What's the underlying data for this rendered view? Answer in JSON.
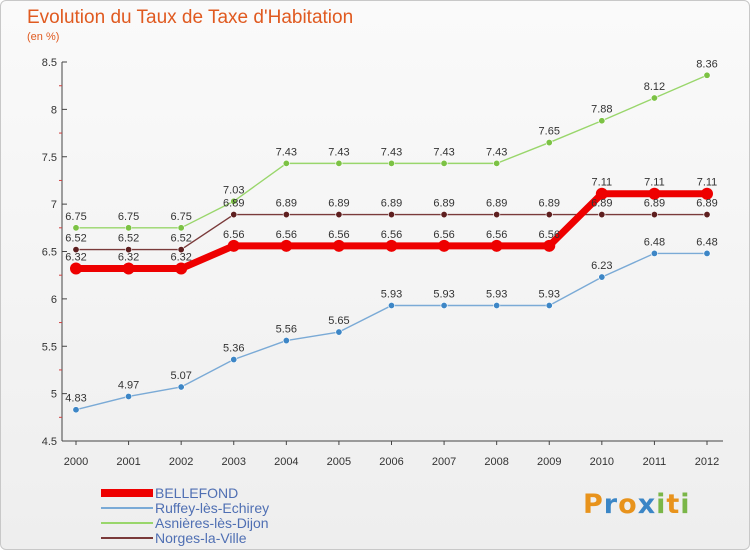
{
  "title": "Evolution du Taux de Taxe d'Habitation",
  "subtitle": "(en %)",
  "brand": {
    "letters": [
      "P",
      "r",
      "o",
      "x",
      "i",
      "t",
      "i"
    ],
    "colors": [
      "#e8931c",
      "#3b86c6",
      "#e8931c",
      "#3b86c6",
      "#7ab648",
      "#e8931c",
      "#7ab648"
    ]
  },
  "chart_data": {
    "type": "line",
    "title": "Evolution du Taux de Taxe d'Habitation",
    "ylabel": "(en %)",
    "xlabel": "",
    "x": [
      "2000",
      "2001",
      "2002",
      "2003",
      "2004",
      "2005",
      "2006",
      "2007",
      "2008",
      "2009",
      "2010",
      "2011",
      "2012"
    ],
    "ylim": [
      4.5,
      8.5
    ],
    "yticks": [
      "4.5",
      "5",
      "5.5",
      "6",
      "6.5",
      "7",
      "7.5",
      "8",
      "8.5"
    ],
    "grid": false,
    "legend": "bottom-left",
    "series": [
      {
        "name": "Asnières-lès-Dijon",
        "color": "#99d66b",
        "dot": "#7cc244",
        "width": 1.4,
        "values": [
          6.75,
          6.75,
          6.75,
          7.03,
          7.43,
          7.43,
          7.43,
          7.43,
          7.43,
          7.65,
          7.88,
          8.12,
          8.36
        ],
        "labels": [
          "6.75",
          "6.75",
          "6.75",
          "7.03",
          "7.43",
          "7.43",
          "7.43",
          "7.43",
          "7.43",
          "7.65",
          "7.88",
          "8.12",
          "8.36"
        ]
      },
      {
        "name": "Norges-la-Ville",
        "color": "#7a3a3a",
        "dot": "#5e1f1f",
        "width": 1.4,
        "values": [
          6.52,
          6.52,
          6.52,
          6.89,
          6.89,
          6.89,
          6.89,
          6.89,
          6.89,
          6.89,
          6.89,
          6.89,
          6.89
        ],
        "labels": [
          "6.52",
          "6.52",
          "6.52",
          "6.89",
          "6.89",
          "6.89",
          "6.89",
          "6.89",
          "6.89",
          "6.89",
          "6.89",
          "6.89",
          "6.89"
        ]
      },
      {
        "name": "Ruffey-lès-Echirey",
        "color": "#7aaad6",
        "dot": "#3d86c6",
        "width": 1.4,
        "values": [
          4.83,
          4.97,
          5.07,
          5.36,
          5.56,
          5.65,
          5.93,
          5.93,
          5.93,
          5.93,
          6.23,
          6.48,
          6.48
        ],
        "labels": [
          "4.83",
          "4.97",
          "5.07",
          "5.36",
          "5.56",
          "5.65",
          "5.93",
          "5.93",
          "5.93",
          "5.93",
          "6.23",
          "6.48",
          "6.48"
        ]
      },
      {
        "name": "BELLEFOND",
        "color": "#ee0000",
        "dot": "#ee0000",
        "width": 7,
        "values": [
          6.32,
          6.32,
          6.32,
          6.56,
          6.56,
          6.56,
          6.56,
          6.56,
          6.56,
          6.56,
          7.11,
          7.11,
          7.11
        ],
        "labels": [
          "6.32",
          "6.32",
          "6.32",
          "6.56",
          "6.56",
          "6.56",
          "6.56",
          "6.56",
          "6.56",
          "6.56",
          "7.11",
          "7.11",
          "7.11"
        ]
      }
    ],
    "legend_entries": [
      {
        "name": "BELLEFOND",
        "color": "#ee0000",
        "thick": true
      },
      {
        "name": "Ruffey-lès-Echirey",
        "color": "#7aaad6",
        "thick": false
      },
      {
        "name": "Asnières-lès-Dijon",
        "color": "#99d66b",
        "thick": false
      },
      {
        "name": "Norges-la-Ville",
        "color": "#7a3a3a",
        "thick": false
      }
    ]
  }
}
